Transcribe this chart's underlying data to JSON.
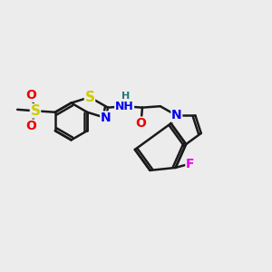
{
  "background_color": "#ECECEC",
  "bond_color": "#1a1a1a",
  "bond_width": 1.8,
  "atom_colors": {
    "S": "#cccc00",
    "N": "#0000ee",
    "O": "#ee0000",
    "F": "#ee00ee",
    "H": "#227777",
    "C": "#1a1a1a"
  },
  "font_size": 10
}
